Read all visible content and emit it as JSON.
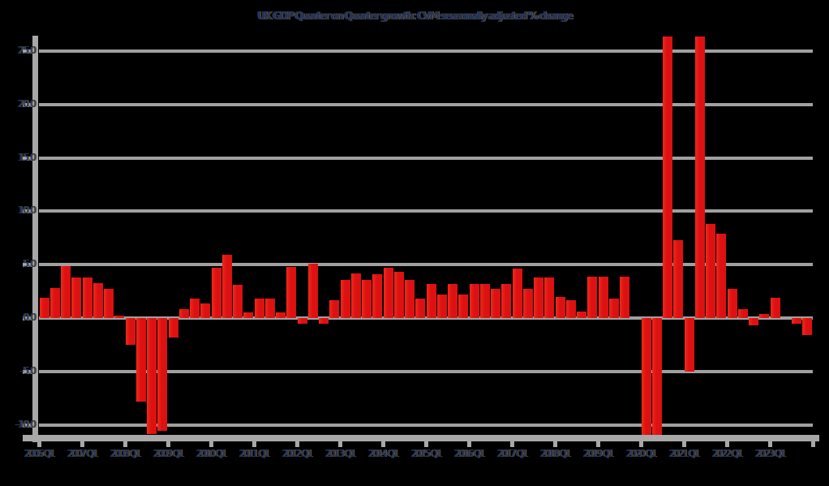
{
  "colors": {
    "background": "#000000",
    "bar": "#dd1111",
    "bar_edge_highlight": "#ee2a1a",
    "grid": "#a0a0a0",
    "spine": "#a8a8a8",
    "text": "#233354"
  },
  "chart_data": {
    "type": "bar",
    "title": "UK GDP Quarter on Quarter growth: CVM seasonally adjusted % change",
    "xlabel": "",
    "ylabel": "",
    "legend": "none",
    "grid": "horizontal",
    "ylim": [
      -10.9,
      26.5
    ],
    "y_ticks": [
      {
        "value": 25,
        "label": "25.0"
      },
      {
        "value": 20,
        "label": "20.0"
      },
      {
        "value": 15,
        "label": "15.0"
      },
      {
        "value": 10,
        "label": "10.0"
      },
      {
        "value": 5,
        "label": "5.0"
      },
      {
        "value": 0,
        "label": "0.0"
      },
      {
        "value": -5,
        "label": "-5.0"
      },
      {
        "value": -10,
        "label": "-10.0"
      }
    ],
    "x_tick_labels": [
      "2006 Q1",
      "2007 Q1",
      "2008 Q1",
      "2009 Q1",
      "2010 Q1",
      "2011 Q1",
      "2012 Q1",
      "2013 Q1",
      "2014 Q1",
      "2015 Q1",
      "2016 Q1",
      "2017 Q1",
      "2018 Q1",
      "2019 Q1",
      "2020 Q1",
      "2021 Q1",
      "2022 Q1",
      "2023 Q1"
    ],
    "categories": [
      "2006Q1",
      "2006Q2",
      "2006Q3",
      "2006Q4",
      "2007Q1",
      "2007Q2",
      "2007Q3",
      "2007Q4",
      "2008Q1",
      "2008Q2",
      "2008Q3",
      "2008Q4",
      "2009Q1",
      "2009Q2",
      "2009Q3",
      "2009Q4",
      "2010Q1",
      "2010Q2",
      "2010Q3",
      "2010Q4",
      "2011Q1",
      "2011Q2",
      "2011Q3",
      "2011Q4",
      "2012Q1",
      "2012Q2",
      "2012Q3",
      "2012Q4",
      "2013Q1",
      "2013Q2",
      "2013Q3",
      "2013Q4",
      "2014Q1",
      "2014Q2",
      "2014Q3",
      "2014Q4",
      "2015Q1",
      "2015Q2",
      "2015Q3",
      "2015Q4",
      "2016Q1",
      "2016Q2",
      "2016Q3",
      "2016Q4",
      "2017Q1",
      "2017Q2",
      "2017Q3",
      "2017Q4",
      "2018Q1",
      "2018Q2",
      "2018Q3",
      "2018Q4",
      "2019Q1",
      "2019Q2",
      "2019Q3",
      "2019Q4",
      "2020Q1",
      "2020Q2",
      "2020Q3",
      "2020Q4",
      "2021Q1",
      "2021Q2",
      "2021Q3",
      "2021Q4",
      "2022Q1",
      "2022Q2",
      "2022Q3",
      "2022Q4",
      "2023Q1",
      "2023Q2",
      "2023Q3",
      "2023Q4"
    ],
    "values": [
      1.9,
      2.8,
      4.9,
      3.8,
      3.8,
      3.3,
      2.7,
      0.2,
      -2.5,
      -7.8,
      -10.9,
      -10.6,
      -1.8,
      0.8,
      1.8,
      1.4,
      4.7,
      5.9,
      3.1,
      0.5,
      1.8,
      1.8,
      0.5,
      4.8,
      -0.5,
      5.1,
      -0.5,
      1.7,
      3.6,
      4.2,
      3.6,
      4.1,
      4.7,
      4.3,
      3.6,
      1.8,
      3.2,
      2.2,
      3.2,
      2.2,
      3.2,
      3.2,
      2.7,
      3.2,
      4.6,
      2.7,
      3.8,
      3.8,
      2.0,
      1.7,
      0.6,
      3.9,
      3.9,
      1.8,
      3.9,
      0.0,
      -11.5,
      -11.5,
      26.5,
      7.3,
      -5.0,
      26.5,
      8.8,
      7.9,
      2.7,
      0.8,
      -0.7,
      0.4,
      1.9,
      0.0,
      -0.5,
      -1.6
    ],
    "clipped_note": "bars beyond ylim are clipped flat at plot edges"
  }
}
